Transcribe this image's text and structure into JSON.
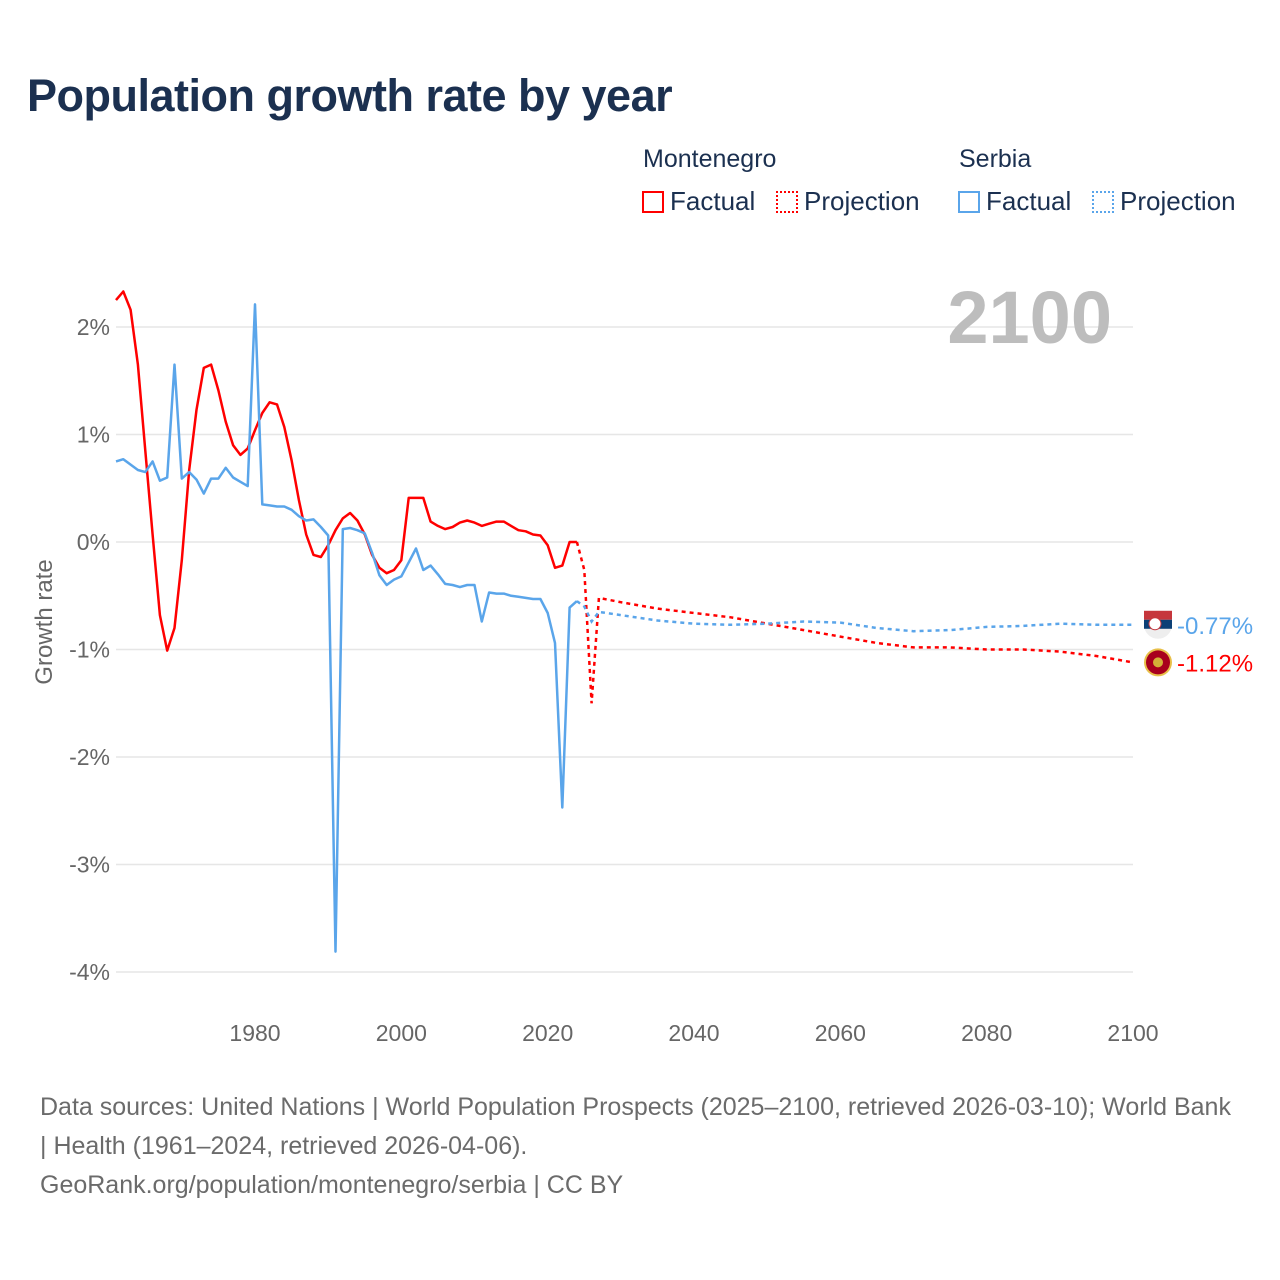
{
  "title": "Population growth rate by year",
  "current_year_label": "2100",
  "legend": {
    "groups": [
      {
        "name": "Montenegro",
        "factual": "Factual",
        "projection": "Projection",
        "color": "#ff0000"
      },
      {
        "name": "Serbia",
        "factual": "Factual",
        "projection": "Projection",
        "color": "#5aa5ea"
      }
    ]
  },
  "sources": {
    "line1": "Data sources: United Nations | World Population Prospects (2025–2100, retrieved 2026-03-10); World Bank | Health (1961–2024, retrieved 2026-04-06).",
    "line2": "GeoRank.org/population/montenegro/serbia | CC BY"
  },
  "chart_data": {
    "type": "line",
    "title": "Population growth rate by year",
    "xlabel": "",
    "ylabel": "Growth rate",
    "xlim": [
      1961,
      2100
    ],
    "ylim": [
      -4.2,
      2.4
    ],
    "x_ticks": [
      1980,
      2000,
      2020,
      2040,
      2060,
      2080,
      2100
    ],
    "y_ticks": [
      {
        "v": 2,
        "label": "2%"
      },
      {
        "v": 1,
        "label": "1%"
      },
      {
        "v": 0,
        "label": "0%"
      },
      {
        "v": -1,
        "label": "-1%"
      },
      {
        "v": -2,
        "label": "-2%"
      },
      {
        "v": -3,
        "label": "-3%"
      },
      {
        "v": -4,
        "label": "-4%"
      }
    ],
    "grid": true,
    "series": [
      {
        "name": "Montenegro",
        "color": "#ff0000",
        "end_label": "-1.12%",
        "factual": [
          [
            1961,
            2.25
          ],
          [
            1962,
            2.33
          ],
          [
            1963,
            2.16
          ],
          [
            1964,
            1.65
          ],
          [
            1965,
            0.85
          ],
          [
            1966,
            0.07
          ],
          [
            1967,
            -0.68
          ],
          [
            1968,
            -1.01
          ],
          [
            1969,
            -0.8
          ],
          [
            1970,
            -0.17
          ],
          [
            1971,
            0.67
          ],
          [
            1972,
            1.23
          ],
          [
            1973,
            1.62
          ],
          [
            1974,
            1.65
          ],
          [
            1975,
            1.41
          ],
          [
            1976,
            1.12
          ],
          [
            1977,
            0.9
          ],
          [
            1978,
            0.81
          ],
          [
            1979,
            0.87
          ],
          [
            1980,
            1.04
          ],
          [
            1981,
            1.2
          ],
          [
            1982,
            1.3
          ],
          [
            1983,
            1.28
          ],
          [
            1984,
            1.07
          ],
          [
            1985,
            0.76
          ],
          [
            1986,
            0.39
          ],
          [
            1987,
            0.07
          ],
          [
            1988,
            -0.12
          ],
          [
            1989,
            -0.14
          ],
          [
            1990,
            -0.03
          ],
          [
            1991,
            0.11
          ],
          [
            1992,
            0.22
          ],
          [
            1993,
            0.27
          ],
          [
            1994,
            0.2
          ],
          [
            1995,
            0.07
          ],
          [
            1996,
            -0.12
          ],
          [
            1997,
            -0.24
          ],
          [
            1998,
            -0.29
          ],
          [
            1999,
            -0.26
          ],
          [
            2000,
            -0.17
          ],
          [
            2001,
            0.41
          ],
          [
            2002,
            0.41
          ],
          [
            2003,
            0.41
          ],
          [
            2004,
            0.19
          ],
          [
            2005,
            0.15
          ],
          [
            2006,
            0.12
          ],
          [
            2007,
            0.14
          ],
          [
            2008,
            0.18
          ],
          [
            2009,
            0.2
          ],
          [
            2010,
            0.18
          ],
          [
            2011,
            0.15
          ],
          [
            2012,
            0.17
          ],
          [
            2013,
            0.19
          ],
          [
            2014,
            0.19
          ],
          [
            2015,
            0.15
          ],
          [
            2016,
            0.11
          ],
          [
            2017,
            0.1
          ],
          [
            2018,
            0.07
          ],
          [
            2019,
            0.06
          ],
          [
            2020,
            -0.03
          ],
          [
            2021,
            -0.24
          ],
          [
            2022,
            -0.22
          ],
          [
            2023,
            0.0
          ],
          [
            2024,
            0.0
          ]
        ],
        "projection": [
          [
            2024,
            0.0
          ],
          [
            2025,
            -0.26
          ],
          [
            2026,
            -1.5
          ],
          [
            2027,
            -0.52
          ],
          [
            2030,
            -0.56
          ],
          [
            2035,
            -0.62
          ],
          [
            2040,
            -0.66
          ],
          [
            2045,
            -0.7
          ],
          [
            2050,
            -0.76
          ],
          [
            2055,
            -0.82
          ],
          [
            2060,
            -0.88
          ],
          [
            2065,
            -0.94
          ],
          [
            2070,
            -0.98
          ],
          [
            2075,
            -0.98
          ],
          [
            2080,
            -1.0
          ],
          [
            2085,
            -1.0
          ],
          [
            2090,
            -1.02
          ],
          [
            2095,
            -1.06
          ],
          [
            2100,
            -1.12
          ]
        ]
      },
      {
        "name": "Serbia",
        "color": "#5aa5ea",
        "end_label": "-0.77%",
        "factual": [
          [
            1961,
            0.75
          ],
          [
            1962,
            0.77
          ],
          [
            1963,
            0.72
          ],
          [
            1964,
            0.67
          ],
          [
            1965,
            0.65
          ],
          [
            1966,
            0.75
          ],
          [
            1967,
            0.57
          ],
          [
            1968,
            0.6
          ],
          [
            1969,
            1.65
          ],
          [
            1970,
            0.59
          ],
          [
            1971,
            0.65
          ],
          [
            1972,
            0.58
          ],
          [
            1973,
            0.45
          ],
          [
            1974,
            0.59
          ],
          [
            1975,
            0.59
          ],
          [
            1976,
            0.69
          ],
          [
            1977,
            0.6
          ],
          [
            1978,
            0.56
          ],
          [
            1979,
            0.52
          ],
          [
            1980,
            2.21
          ],
          [
            1981,
            0.35
          ],
          [
            1982,
            0.34
          ],
          [
            1983,
            0.33
          ],
          [
            1984,
            0.33
          ],
          [
            1985,
            0.3
          ],
          [
            1986,
            0.24
          ],
          [
            1987,
            0.2
          ],
          [
            1988,
            0.21
          ],
          [
            1989,
            0.14
          ],
          [
            1990,
            0.06
          ],
          [
            1991,
            -3.81
          ],
          [
            1992,
            0.12
          ],
          [
            1993,
            0.13
          ],
          [
            1994,
            0.11
          ],
          [
            1995,
            0.08
          ],
          [
            1996,
            -0.1
          ],
          [
            1997,
            -0.31
          ],
          [
            1998,
            -0.4
          ],
          [
            1999,
            -0.35
          ],
          [
            2000,
            -0.32
          ],
          [
            2001,
            -0.19
          ],
          [
            2002,
            -0.06
          ],
          [
            2003,
            -0.26
          ],
          [
            2004,
            -0.22
          ],
          [
            2005,
            -0.3
          ],
          [
            2006,
            -0.39
          ],
          [
            2007,
            -0.4
          ],
          [
            2008,
            -0.42
          ],
          [
            2009,
            -0.4
          ],
          [
            2010,
            -0.4
          ],
          [
            2011,
            -0.74
          ],
          [
            2012,
            -0.47
          ],
          [
            2013,
            -0.48
          ],
          [
            2014,
            -0.48
          ],
          [
            2015,
            -0.5
          ],
          [
            2016,
            -0.51
          ],
          [
            2017,
            -0.52
          ],
          [
            2018,
            -0.53
          ],
          [
            2019,
            -0.53
          ],
          [
            2020,
            -0.66
          ],
          [
            2021,
            -0.94
          ],
          [
            2022,
            -2.47
          ],
          [
            2023,
            -0.61
          ],
          [
            2024,
            -0.55
          ]
        ],
        "projection": [
          [
            2024,
            -0.55
          ],
          [
            2025,
            -0.6
          ],
          [
            2026,
            -0.74
          ],
          [
            2027,
            -0.65
          ],
          [
            2030,
            -0.68
          ],
          [
            2035,
            -0.73
          ],
          [
            2040,
            -0.76
          ],
          [
            2045,
            -0.77
          ],
          [
            2050,
            -0.76
          ],
          [
            2055,
            -0.74
          ],
          [
            2060,
            -0.75
          ],
          [
            2065,
            -0.8
          ],
          [
            2070,
            -0.83
          ],
          [
            2075,
            -0.82
          ],
          [
            2080,
            -0.79
          ],
          [
            2085,
            -0.78
          ],
          [
            2090,
            -0.76
          ],
          [
            2095,
            -0.77
          ],
          [
            2100,
            -0.77
          ]
        ]
      }
    ]
  }
}
